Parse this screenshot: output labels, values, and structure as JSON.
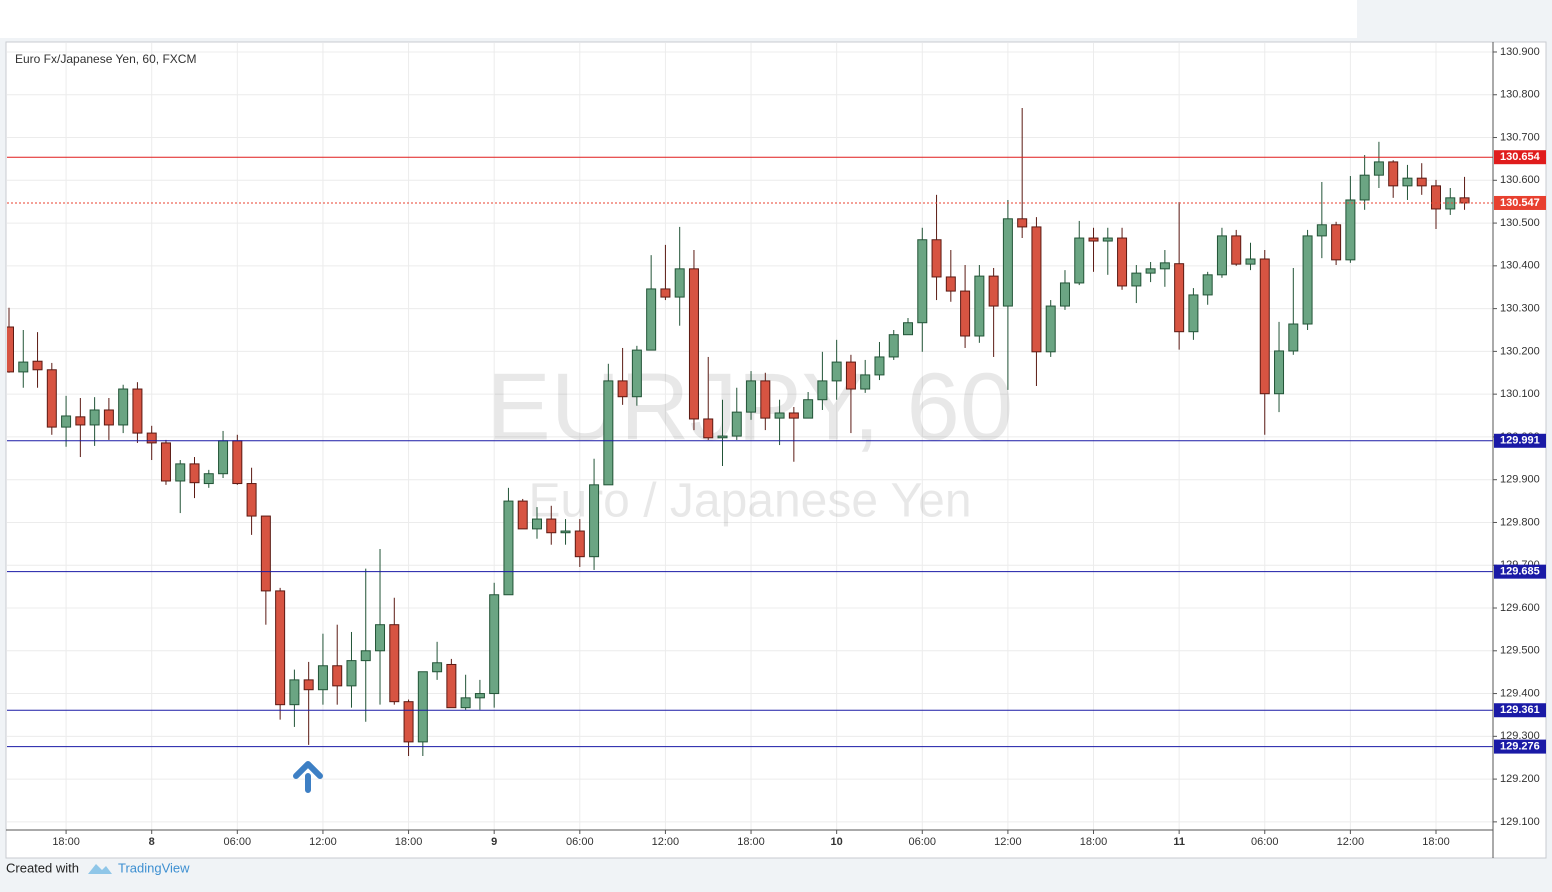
{
  "chart_data": {
    "type": "candlestick",
    "title": "Euro Fx/Japanese Yen, 60, FXCM",
    "watermark": "EURJPY, 60",
    "watermark_subtitle": "Euro / Japanese Yen",
    "up_color": "#6ba583",
    "down_color": "#d75442",
    "grid": true,
    "categories": [
      null,
      null,
      null,
      null,
      "18:00",
      null,
      null,
      null,
      null,
      null,
      "8",
      null,
      null,
      null,
      null,
      null,
      "06:00",
      null,
      null,
      null,
      null,
      null,
      "12:00",
      null,
      null,
      null,
      null,
      null,
      "18:00",
      null,
      null,
      null,
      null,
      null,
      "9",
      null,
      null,
      null,
      null,
      null,
      "06:00",
      null,
      null,
      null,
      null,
      null,
      "12:00",
      null,
      null,
      null,
      null,
      null,
      "18:00",
      null,
      null,
      null,
      null,
      null,
      "10",
      null,
      null,
      null,
      null,
      null,
      "06:00",
      null,
      null,
      null,
      null,
      null,
      "12:00",
      null,
      null,
      null,
      null,
      null,
      "18:00",
      null,
      null,
      null,
      null,
      null,
      "11",
      null,
      null,
      null,
      null,
      null,
      "06:00",
      null,
      null,
      null,
      null,
      null,
      "12:00",
      null,
      null,
      null,
      null,
      null,
      "18:00",
      null,
      null
    ],
    "open": [
      130.257,
      130.152,
      130.177,
      130.157,
      130.023,
      130.047,
      130.028,
      130.063,
      130.028,
      130.112,
      130.009,
      129.986,
      129.897,
      129.937,
      129.891,
      129.914,
      129.991,
      129.891,
      129.815,
      129.64,
      129.374,
      129.432,
      129.409,
      129.465,
      129.418,
      129.477,
      129.5,
      129.561,
      129.381,
      129.287,
      129.451,
      129.468,
      129.367,
      129.39,
      129.4,
      129.631,
      129.85,
      129.785,
      129.808,
      129.776,
      129.78,
      129.72,
      129.888,
      130.131,
      130.094,
      130.203,
      130.346,
      130.327,
      130.393,
      130.042,
      129.998,
      130.002,
      130.058,
      130.131,
      130.044,
      130.056,
      130.044,
      130.087,
      130.131,
      130.175,
      130.112,
      130.145,
      130.187,
      130.239,
      130.267,
      130.461,
      130.374,
      130.341,
      130.236,
      130.376,
      130.306,
      130.51,
      130.491,
      130.199,
      130.306,
      130.36,
      130.465,
      130.458,
      130.465,
      130.353,
      130.383,
      130.393,
      130.405,
      130.246,
      130.332,
      130.379,
      130.47,
      130.404,
      130.416,
      130.101,
      130.201,
      130.264,
      130.47,
      130.496,
      130.414,
      130.554,
      130.612,
      130.643,
      130.587,
      130.605,
      130.587,
      130.533,
      130.559
    ],
    "high": [
      130.302,
      130.25,
      130.245,
      130.173,
      130.096,
      130.091,
      130.093,
      130.091,
      130.122,
      130.128,
      130.026,
      129.993,
      129.946,
      129.953,
      129.923,
      130.014,
      130.005,
      129.928,
      129.815,
      129.647,
      129.456,
      129.474,
      129.54,
      129.561,
      129.544,
      129.692,
      129.738,
      129.624,
      129.386,
      129.451,
      129.521,
      129.481,
      129.444,
      129.432,
      129.659,
      129.881,
      129.855,
      129.836,
      129.839,
      129.808,
      129.808,
      129.949,
      130.171,
      130.208,
      130.213,
      130.425,
      130.449,
      130.491,
      130.437,
      130.187,
      130.087,
      130.115,
      130.154,
      130.15,
      130.087,
      130.07,
      130.105,
      130.199,
      130.227,
      130.192,
      130.18,
      130.222,
      130.25,
      130.278,
      130.489,
      130.566,
      130.437,
      130.402,
      130.402,
      130.395,
      130.554,
      130.769,
      130.514,
      130.32,
      130.39,
      130.505,
      130.489,
      130.489,
      130.489,
      130.402,
      130.409,
      130.437,
      130.549,
      130.348,
      130.386,
      130.489,
      130.484,
      130.454,
      130.437,
      130.269,
      130.395,
      130.484,
      130.596,
      130.503,
      130.61,
      130.659,
      130.69,
      130.647,
      130.636,
      130.64,
      130.601,
      130.582,
      130.608
    ],
    "low": [
      130.15,
      130.115,
      130.115,
      130.005,
      129.977,
      129.953,
      129.979,
      129.993,
      130.009,
      129.986,
      129.946,
      129.888,
      129.822,
      129.857,
      129.881,
      129.904,
      129.888,
      129.771,
      129.561,
      129.339,
      129.322,
      129.28,
      129.374,
      129.374,
      129.367,
      129.334,
      129.374,
      129.374,
      129.254,
      129.254,
      129.432,
      129.367,
      129.362,
      129.362,
      129.367,
      129.631,
      129.785,
      129.762,
      129.748,
      129.748,
      129.696,
      129.689,
      129.888,
      130.075,
      130.073,
      130.203,
      130.32,
      130.26,
      130.016,
      129.993,
      129.932,
      129.993,
      130.04,
      130.016,
      129.981,
      129.942,
      130.044,
      130.063,
      130.087,
      130.009,
      130.103,
      130.133,
      130.18,
      130.239,
      130.199,
      130.32,
      130.316,
      130.208,
      130.22,
      130.187,
      130.11,
      130.465,
      130.119,
      130.187,
      130.297,
      130.355,
      130.386,
      130.379,
      130.344,
      130.313,
      130.362,
      130.351,
      130.204,
      130.227,
      130.309,
      130.372,
      130.4,
      130.39,
      130.005,
      130.058,
      130.192,
      130.25,
      130.418,
      130.402,
      130.407,
      130.531,
      130.582,
      130.559,
      130.554,
      130.566,
      130.486,
      130.519,
      130.531
    ],
    "close": [
      130.152,
      130.175,
      130.157,
      130.023,
      130.049,
      130.028,
      130.063,
      130.028,
      130.112,
      130.009,
      129.986,
      129.897,
      129.937,
      129.893,
      129.914,
      129.991,
      129.891,
      129.815,
      129.64,
      129.374,
      129.432,
      129.409,
      129.465,
      129.418,
      129.477,
      129.5,
      129.561,
      129.381,
      129.287,
      129.451,
      129.472,
      129.367,
      129.39,
      129.4,
      129.631,
      129.85,
      129.785,
      129.808,
      129.776,
      129.78,
      129.72,
      129.888,
      130.131,
      130.094,
      130.203,
      130.346,
      130.327,
      130.393,
      130.042,
      129.998,
      130.002,
      130.058,
      130.131,
      130.044,
      130.056,
      130.044,
      130.087,
      130.131,
      130.175,
      130.112,
      130.145,
      130.187,
      130.239,
      130.267,
      130.461,
      130.374,
      130.341,
      130.236,
      130.376,
      130.306,
      130.51,
      130.491,
      130.199,
      130.306,
      130.36,
      130.465,
      130.458,
      130.465,
      130.353,
      130.383,
      130.393,
      130.407,
      130.246,
      130.332,
      130.379,
      130.47,
      130.404,
      130.416,
      130.101,
      130.201,
      130.264,
      130.47,
      130.496,
      130.414,
      130.554,
      130.612,
      130.643,
      130.587,
      130.605,
      130.587,
      130.533,
      130.559,
      130.547
    ],
    "ylim": [
      129.081,
      130.921
    ],
    "yticks": [
      {
        "value": 129.1,
        "label": "129.100"
      },
      {
        "value": 129.2,
        "label": "129.200"
      },
      {
        "value": 129.3,
        "label": "129.300"
      },
      {
        "value": 129.4,
        "label": "129.400"
      },
      {
        "value": 129.5,
        "label": "129.500"
      },
      {
        "value": 129.6,
        "label": "129.600"
      },
      {
        "value": 129.7,
        "label": "129.700"
      },
      {
        "value": 129.8,
        "label": "129.800"
      },
      {
        "value": 129.9,
        "label": "129.900"
      },
      {
        "value": 130.0,
        "label": "130.000"
      },
      {
        "value": 130.1,
        "label": "130.100"
      },
      {
        "value": 130.2,
        "label": "130.200"
      },
      {
        "value": 130.3,
        "label": "130.300"
      },
      {
        "value": 130.4,
        "label": "130.400"
      },
      {
        "value": 130.5,
        "label": "130.500"
      },
      {
        "value": 130.6,
        "label": "130.600"
      },
      {
        "value": 130.7,
        "label": "130.700"
      },
      {
        "value": 130.8,
        "label": "130.800"
      },
      {
        "value": 130.9,
        "label": "130.900"
      }
    ],
    "hlines": [
      {
        "value": 130.654,
        "color": "#e01c1c",
        "style": "solid"
      },
      {
        "value": 130.547,
        "color": "#e8402f",
        "style": "dotted"
      },
      {
        "value": 129.991,
        "color": "#1a1aa6",
        "style": "solid"
      },
      {
        "value": 129.685,
        "color": "#1a1aa6",
        "style": "solid"
      },
      {
        "value": 129.361,
        "color": "#1a1aa6",
        "style": "solid"
      },
      {
        "value": 129.276,
        "color": "#1a1aa6",
        "style": "solid"
      }
    ]
  },
  "footer": {
    "created_with": "Created with",
    "brand": "TradingView"
  }
}
